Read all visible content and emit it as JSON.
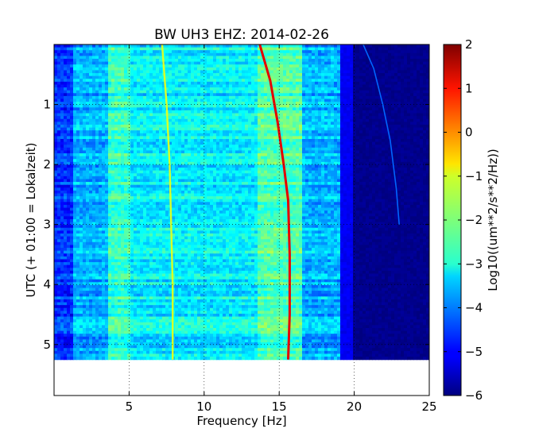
{
  "chart_data": {
    "type": "heatmap",
    "title": "BW UH3 EHZ: 2014-02-26",
    "xlabel": "Frequency [Hz]",
    "ylabel": "UTC (+ 01:00 = Lokalzeit)",
    "xlim": [
      0,
      25
    ],
    "ylim": [
      5.85,
      0.0
    ],
    "y_inverted": true,
    "data_extent_y": [
      0.0,
      5.25
    ],
    "x_ticks": [
      5,
      10,
      15,
      20,
      25
    ],
    "x_tick_labels": [
      "5",
      "10",
      "15",
      "20",
      "25"
    ],
    "y_ticks": [
      1,
      2,
      3,
      4,
      5
    ],
    "y_tick_labels": [
      "1",
      "2",
      "3",
      "4",
      "5"
    ],
    "grid": true,
    "colormap": "jet",
    "colorbar": {
      "label": "Log10((um**2/s**2/Hz))",
      "range": [
        -6,
        2
      ],
      "ticks": [
        "2",
        "1",
        "0",
        "−1",
        "−2",
        "−3",
        "−4",
        "−5",
        "−6"
      ],
      "tick_values": [
        2,
        1,
        0,
        -1,
        -2,
        -3,
        -4,
        -5,
        -6
      ]
    },
    "spectral_lines": [
      {
        "description": "strong tonal line",
        "points": [
          [
            13.7,
            0.0
          ],
          [
            14.4,
            0.6
          ],
          [
            14.9,
            1.3
          ],
          [
            15.3,
            2.0
          ],
          [
            15.6,
            2.6
          ],
          [
            15.7,
            3.5
          ],
          [
            15.7,
            4.5
          ],
          [
            15.6,
            5.25
          ]
        ],
        "level": 1.2
      },
      {
        "description": "weaker tonal line",
        "points": [
          [
            7.2,
            0.0
          ],
          [
            7.5,
            1.0
          ],
          [
            7.7,
            2.0
          ],
          [
            7.8,
            3.0
          ],
          [
            7.9,
            4.0
          ],
          [
            7.9,
            5.25
          ]
        ],
        "level": -1.3
      },
      {
        "description": "faint high-frequency line",
        "points": [
          [
            20.6,
            0.0
          ],
          [
            21.3,
            0.4
          ],
          [
            21.9,
            1.0
          ],
          [
            22.4,
            1.6
          ],
          [
            22.8,
            2.4
          ],
          [
            23.0,
            3.0
          ]
        ],
        "level": -4.2
      }
    ],
    "band_levels": [
      {
        "from_hz": 0.0,
        "to_hz": 1.2,
        "level": -4.6
      },
      {
        "from_hz": 1.2,
        "to_hz": 3.5,
        "level": -3.6
      },
      {
        "from_hz": 3.5,
        "to_hz": 5.0,
        "level": -2.6
      },
      {
        "from_hz": 5.0,
        "to_hz": 13.5,
        "level": -3.1
      },
      {
        "from_hz": 13.5,
        "to_hz": 16.5,
        "level": -2.4
      },
      {
        "from_hz": 16.5,
        "to_hz": 19.0,
        "level": -3.6
      },
      {
        "from_hz": 19.0,
        "to_hz": 20.0,
        "level": -5.1
      },
      {
        "from_hz": 20.0,
        "to_hz": 25.0,
        "level": -5.9
      }
    ]
  }
}
